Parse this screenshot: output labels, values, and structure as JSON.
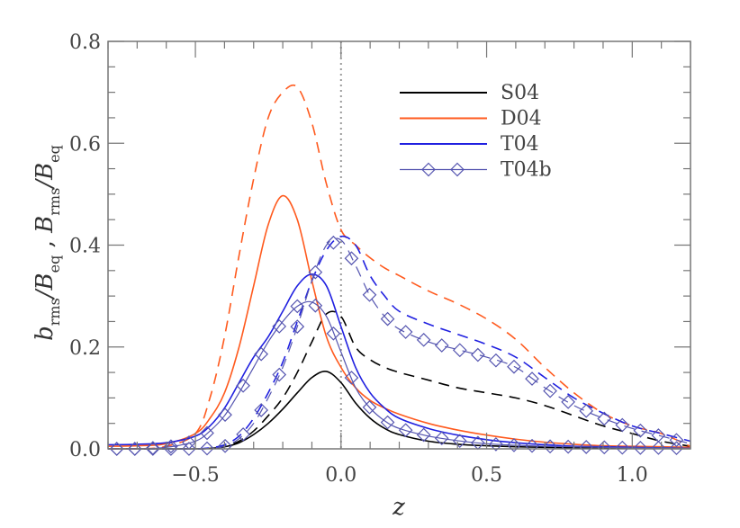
{
  "chart_data": {
    "type": "line",
    "title": "",
    "xlabel": "z",
    "ylabel": "b_rms/B_eq , B̄_rms/B_eq",
    "xlim": [
      -0.8,
      1.2
    ],
    "ylim": [
      0.0,
      0.8
    ],
    "xticks": [
      -0.5,
      0.0,
      0.5,
      1.0
    ],
    "xtick_labels": [
      "−0.5",
      "0.0",
      "0.5",
      "1.0"
    ],
    "yticks": [
      0.0,
      0.2,
      0.4,
      0.6,
      0.8
    ],
    "ytick_labels": [
      "0.0",
      "0.2",
      "0.4",
      "0.6",
      "0.8"
    ],
    "grid": false,
    "vertical_reference_line": {
      "x": 0.0,
      "style": "dotted",
      "color": "#999999"
    },
    "legend": {
      "position": "upper right",
      "entries": [
        {
          "label": "S04",
          "color": "#000000",
          "style": "solid",
          "marker": "none"
        },
        {
          "label": "D04",
          "color": "#ff5a1e",
          "style": "solid",
          "marker": "none"
        },
        {
          "label": "T04",
          "color": "#2020e0",
          "style": "solid",
          "marker": "none"
        },
        {
          "label": "T04b",
          "color": "#5555b0",
          "style": "solid",
          "marker": "diamond"
        }
      ]
    },
    "x": [
      -0.8,
      -0.7,
      -0.6,
      -0.5,
      -0.45,
      -0.4,
      -0.35,
      -0.3,
      -0.25,
      -0.2,
      -0.15,
      -0.1,
      -0.05,
      0.0,
      0.05,
      0.1,
      0.15,
      0.2,
      0.3,
      0.4,
      0.5,
      0.6,
      0.7,
      0.8,
      0.9,
      1.0,
      1.1,
      1.2
    ],
    "series": [
      {
        "name": "S04 b_rms (solid)",
        "color": "#000000",
        "style": "solid",
        "values": [
          0.0,
          0.0,
          0.0,
          0.0,
          0.001,
          0.004,
          0.012,
          0.028,
          0.05,
          0.078,
          0.11,
          0.14,
          0.152,
          0.13,
          0.09,
          0.06,
          0.04,
          0.028,
          0.015,
          0.009,
          0.006,
          0.004,
          0.003,
          0.002,
          0.002,
          0.001,
          0.001,
          0.001
        ]
      },
      {
        "name": "S04 B̄_rms (dashed)",
        "color": "#000000",
        "style": "dashed",
        "values": [
          0.0,
          0.0,
          0.0,
          0.0,
          0.001,
          0.005,
          0.015,
          0.035,
          0.065,
          0.1,
          0.15,
          0.21,
          0.265,
          0.26,
          0.2,
          0.175,
          0.16,
          0.15,
          0.135,
          0.12,
          0.11,
          0.1,
          0.085,
          0.065,
          0.045,
          0.03,
          0.015,
          0.005
        ]
      },
      {
        "name": "D04 b_rms (solid)",
        "color": "#ff5a1e",
        "style": "solid",
        "values": [
          0.005,
          0.006,
          0.01,
          0.03,
          0.06,
          0.11,
          0.2,
          0.32,
          0.44,
          0.497,
          0.45,
          0.33,
          0.22,
          0.16,
          0.12,
          0.095,
          0.08,
          0.068,
          0.05,
          0.037,
          0.027,
          0.019,
          0.013,
          0.009,
          0.006,
          0.005,
          0.004,
          0.003
        ]
      },
      {
        "name": "D04 B̄_rms (dashed)",
        "color": "#ff5a1e",
        "style": "dashed",
        "values": [
          0.0,
          0.0,
          0.005,
          0.03,
          0.1,
          0.22,
          0.38,
          0.53,
          0.65,
          0.7,
          0.71,
          0.64,
          0.52,
          0.43,
          0.4,
          0.375,
          0.355,
          0.34,
          0.31,
          0.285,
          0.255,
          0.215,
          0.16,
          0.11,
          0.07,
          0.045,
          0.03,
          0.005
        ]
      },
      {
        "name": "T04 b_rms (solid)",
        "color": "#2020e0",
        "style": "solid",
        "values": [
          0.008,
          0.009,
          0.012,
          0.025,
          0.045,
          0.08,
          0.13,
          0.18,
          0.22,
          0.27,
          0.32,
          0.343,
          0.32,
          0.24,
          0.16,
          0.11,
          0.08,
          0.06,
          0.04,
          0.027,
          0.018,
          0.012,
          0.008,
          0.005,
          0.004,
          0.003,
          0.002,
          0.001
        ]
      },
      {
        "name": "T04 B̄_rms (dashed)",
        "color": "#2020e0",
        "style": "dashed",
        "values": [
          0.0,
          0.0,
          0.0,
          0.0,
          0.002,
          0.008,
          0.025,
          0.06,
          0.11,
          0.17,
          0.25,
          0.33,
          0.39,
          0.417,
          0.4,
          0.34,
          0.3,
          0.27,
          0.245,
          0.225,
          0.205,
          0.18,
          0.14,
          0.1,
          0.07,
          0.045,
          0.03,
          0.015
        ]
      },
      {
        "name": "T04b b_rms (solid, diamonds)",
        "color": "#5555b0",
        "style": "solid",
        "marker": "diamond",
        "values": [
          0.0,
          0.0,
          0.003,
          0.015,
          0.035,
          0.065,
          0.11,
          0.16,
          0.21,
          0.25,
          0.28,
          0.288,
          0.26,
          0.19,
          0.12,
          0.08,
          0.055,
          0.04,
          0.025,
          0.016,
          0.01,
          0.007,
          0.005,
          0.004,
          0.003,
          0.002,
          0.002,
          0.001
        ]
      },
      {
        "name": "T04b B̄_rms (dashed, diamonds)",
        "color": "#5555b0",
        "style": "dashed",
        "marker": "diamond",
        "values": [
          0.0,
          0.0,
          0.0,
          0.0,
          0.001,
          0.005,
          0.02,
          0.05,
          0.1,
          0.16,
          0.24,
          0.33,
          0.4,
          0.41,
          0.36,
          0.3,
          0.26,
          0.235,
          0.21,
          0.195,
          0.18,
          0.16,
          0.12,
          0.085,
          0.06,
          0.04,
          0.025,
          0.01
        ]
      }
    ]
  }
}
